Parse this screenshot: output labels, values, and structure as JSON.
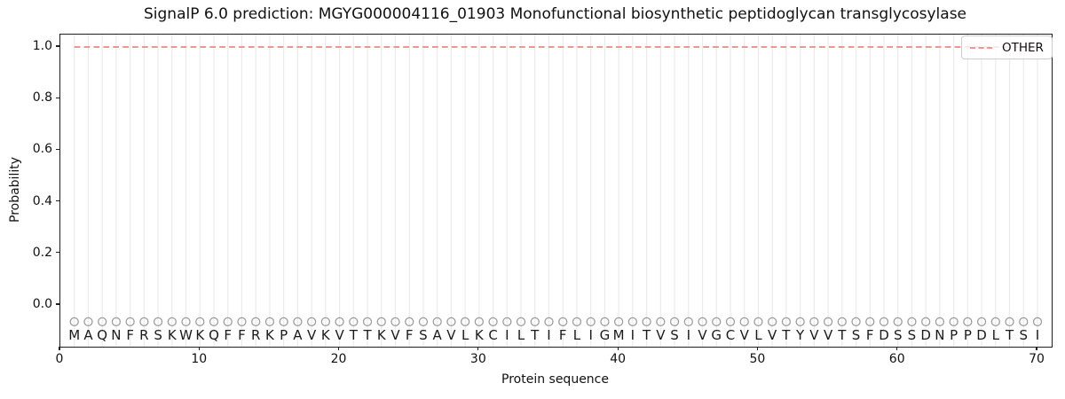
{
  "chart_data": {
    "type": "line",
    "title": "SignalP 6.0 prediction: MGYG000004116_01903 Monofunctional biosynthetic peptidoglycan transglycosylase",
    "xlabel": "Protein sequence",
    "ylabel": "Probability",
    "x_ticks": [
      0,
      10,
      20,
      30,
      40,
      50,
      60,
      70
    ],
    "y_ticks": [
      "0.0",
      "0.2",
      "0.4",
      "0.6",
      "0.8",
      "1.0"
    ],
    "xlim": [
      0,
      71
    ],
    "ylim": [
      -0.17,
      1.05
    ],
    "grid": {
      "vertical_line_per_residue": true,
      "color": "#ebebeb"
    },
    "legend": {
      "position": "upper right",
      "entries": [
        {
          "label": "OTHER",
          "color": "#ee8686",
          "linestyle": "dashed"
        }
      ]
    },
    "series": [
      {
        "name": "OTHER",
        "linestyle": "dashed",
        "color": "#ee8686",
        "x_start": 1,
        "x_end": 70,
        "y_value": 1.0,
        "note": "constant probability 1.0 across all 70 residues"
      }
    ],
    "sequence": [
      "M",
      "A",
      "Q",
      "N",
      "F",
      "R",
      "S",
      "K",
      "W",
      "K",
      "Q",
      "F",
      "F",
      "R",
      "K",
      "P",
      "A",
      "V",
      "K",
      "V",
      "T",
      "T",
      "K",
      "V",
      "F",
      "S",
      "A",
      "V",
      "L",
      "K",
      "C",
      "I",
      "L",
      "T",
      "I",
      "F",
      "L",
      "I",
      "G",
      "M",
      "I",
      "T",
      "V",
      "S",
      "I",
      "V",
      "G",
      "C",
      "V",
      "L",
      "V",
      "T",
      "Y",
      "V",
      "V",
      "T",
      "S",
      "F",
      "D",
      "S",
      "S",
      "D",
      "N",
      "P",
      "P",
      "D",
      "L",
      "T",
      "S",
      "I"
    ],
    "residue_markers": {
      "shape": "open-circle",
      "color": "#9a9a9a",
      "y_value": -0.065
    },
    "colors": {
      "spine": "#1f1f1f",
      "letters": "#1a1a1a",
      "background": "#ffffff"
    }
  }
}
